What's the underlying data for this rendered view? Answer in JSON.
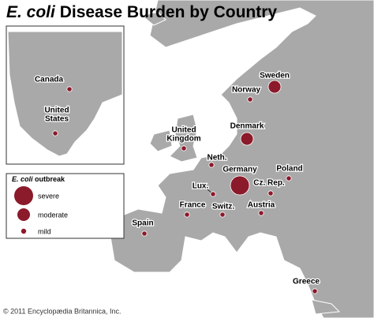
{
  "title": {
    "italic": "E. coli",
    "text": "Disease Burden by Country"
  },
  "legend": {
    "title_italic": "E. coli",
    "title_text": "outbreak",
    "items": [
      {
        "label": "severe"
      },
      {
        "label": "moderate"
      },
      {
        "label": "mild"
      }
    ]
  },
  "inset": {
    "countries": [
      {
        "label": [
          "Canada"
        ],
        "level": 2
      },
      {
        "label": [
          "United",
          "States"
        ],
        "level": 2
      }
    ]
  },
  "countries": [
    {
      "label": [
        "Sweden"
      ],
      "level": 1
    },
    {
      "label": [
        "Norway"
      ],
      "level": 2
    },
    {
      "label": [
        "Denmark"
      ],
      "level": 1
    },
    {
      "label": [
        "United",
        "Kingdom"
      ],
      "level": 2
    },
    {
      "label": [
        "Neth."
      ],
      "level": 2
    },
    {
      "label": [
        "Germany"
      ],
      "level": 0
    },
    {
      "label": [
        "Poland"
      ],
      "level": 2
    },
    {
      "label": [
        "Lux."
      ],
      "level": 2
    },
    {
      "label": [
        "Cz. Rep."
      ],
      "level": 2
    },
    {
      "label": [
        "France"
      ],
      "level": 2
    },
    {
      "label": [
        "Switz."
      ],
      "level": 2
    },
    {
      "label": [
        "Austria"
      ],
      "level": 2
    },
    {
      "label": [
        "Spain"
      ],
      "level": 2
    },
    {
      "label": [
        "Greece"
      ],
      "level": 2
    }
  ],
  "copyright": "© 2011 Encyclopædia Britannica, Inc."
}
